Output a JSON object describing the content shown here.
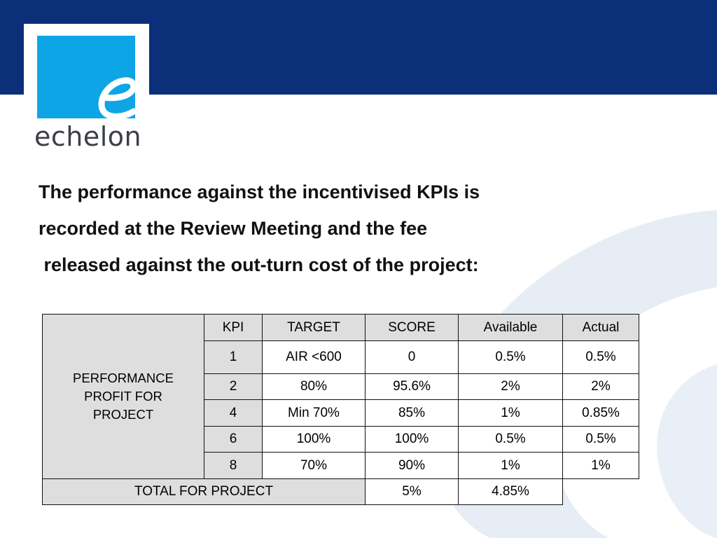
{
  "brand": {
    "logo_letter": "e",
    "logo_word": "echelon",
    "colors": {
      "navy": "#0b2f78",
      "cyan": "#0ea5e6",
      "swoosh": "#e8eef6"
    }
  },
  "intro": {
    "line1": "The performance against the incentivised KPIs is",
    "line2": "recorded at the Review Meeting and the fee",
    "line3": " released against the out-turn cost of the project:"
  },
  "table": {
    "side_label": [
      "PERFORMANCE",
      "PROFIT FOR",
      "PROJECT"
    ],
    "headers": [
      "KPI",
      "TARGET",
      "SCORE",
      "Available",
      "Actual"
    ],
    "rows": [
      [
        "1",
        "AIR <600",
        "0",
        "0.5%",
        "0.5%"
      ],
      [
        "2",
        "80%",
        "95.6%",
        "2%",
        "2%"
      ],
      [
        "4",
        "Min 70%",
        "85%",
        "1%",
        "0.85%"
      ],
      [
        "6",
        "100%",
        "100%",
        "0.5%",
        "0.5%"
      ],
      [
        "8",
        "70%",
        "90%",
        "1%",
        "1%"
      ]
    ],
    "total": {
      "label": "TOTAL FOR PROJECT",
      "available": "5%",
      "actual": "4.85%"
    }
  }
}
